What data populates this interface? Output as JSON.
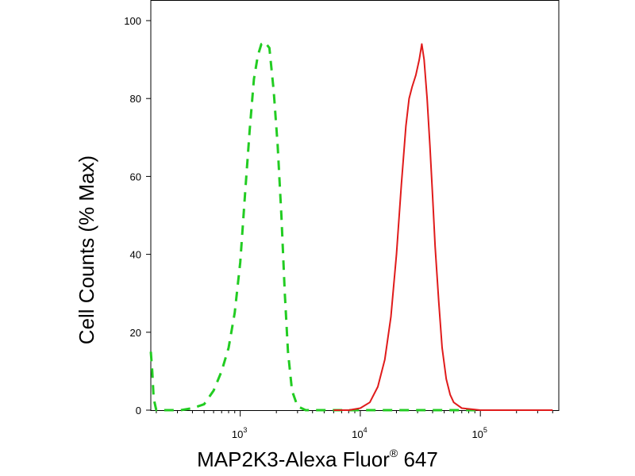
{
  "chart_data": {
    "type": "line",
    "xlabel": {
      "text": "MAP2K3-Alexa Fluor",
      "sup": "®",
      "suffix": " 647"
    },
    "ylabel": "Cell Counts (% Max)",
    "x_scale": "log",
    "xlim": [
      180,
      450000
    ],
    "ylim": [
      0,
      100
    ],
    "yticks": [
      0,
      20,
      40,
      60,
      80,
      100
    ],
    "xticks": [
      {
        "value": 1000,
        "base": "10",
        "exp": "3"
      },
      {
        "value": 10000,
        "base": "10",
        "exp": "4"
      },
      {
        "value": 100000,
        "base": "10",
        "exp": "5"
      }
    ],
    "grid": false,
    "series": [
      {
        "style": "dashed",
        "color": "#22cc22",
        "points": [
          [
            180,
            15
          ],
          [
            185,
            10
          ],
          [
            190,
            3
          ],
          [
            200,
            0
          ],
          [
            250,
            0
          ],
          [
            320,
            0
          ],
          [
            400,
            0.5
          ],
          [
            500,
            1.5
          ],
          [
            600,
            5
          ],
          [
            700,
            10
          ],
          [
            800,
            16
          ],
          [
            900,
            25
          ],
          [
            1000,
            38
          ],
          [
            1100,
            56
          ],
          [
            1200,
            72
          ],
          [
            1300,
            85
          ],
          [
            1400,
            91
          ],
          [
            1500,
            94
          ],
          [
            1600,
            94.5
          ],
          [
            1750,
            93
          ],
          [
            1900,
            82
          ],
          [
            2050,
            68
          ],
          [
            2200,
            50
          ],
          [
            2350,
            30
          ],
          [
            2500,
            15
          ],
          [
            2700,
            5
          ],
          [
            3000,
            1
          ],
          [
            3500,
            0
          ],
          [
            5000,
            0
          ],
          [
            10000,
            0
          ],
          [
            30000,
            0
          ],
          [
            60000,
            0
          ],
          [
            100000,
            0
          ]
        ]
      },
      {
        "style": "solid",
        "color": "#e01b1b",
        "points": [
          [
            6000,
            0
          ],
          [
            8000,
            0
          ],
          [
            10000,
            0.5
          ],
          [
            12000,
            2
          ],
          [
            14000,
            6
          ],
          [
            16000,
            13
          ],
          [
            18000,
            24
          ],
          [
            20000,
            40
          ],
          [
            22000,
            58
          ],
          [
            24000,
            73
          ],
          [
            25500,
            80
          ],
          [
            27000,
            83
          ],
          [
            29000,
            86
          ],
          [
            31000,
            90
          ],
          [
            32500,
            94
          ],
          [
            34000,
            90
          ],
          [
            36000,
            80
          ],
          [
            38000,
            68
          ],
          [
            40000,
            55
          ],
          [
            42000,
            42
          ],
          [
            45000,
            28
          ],
          [
            48000,
            16
          ],
          [
            52000,
            8
          ],
          [
            56000,
            4
          ],
          [
            60000,
            2
          ],
          [
            70000,
            0.5
          ],
          [
            100000,
            0
          ],
          [
            200000,
            0
          ],
          [
            400000,
            0
          ]
        ]
      }
    ]
  }
}
